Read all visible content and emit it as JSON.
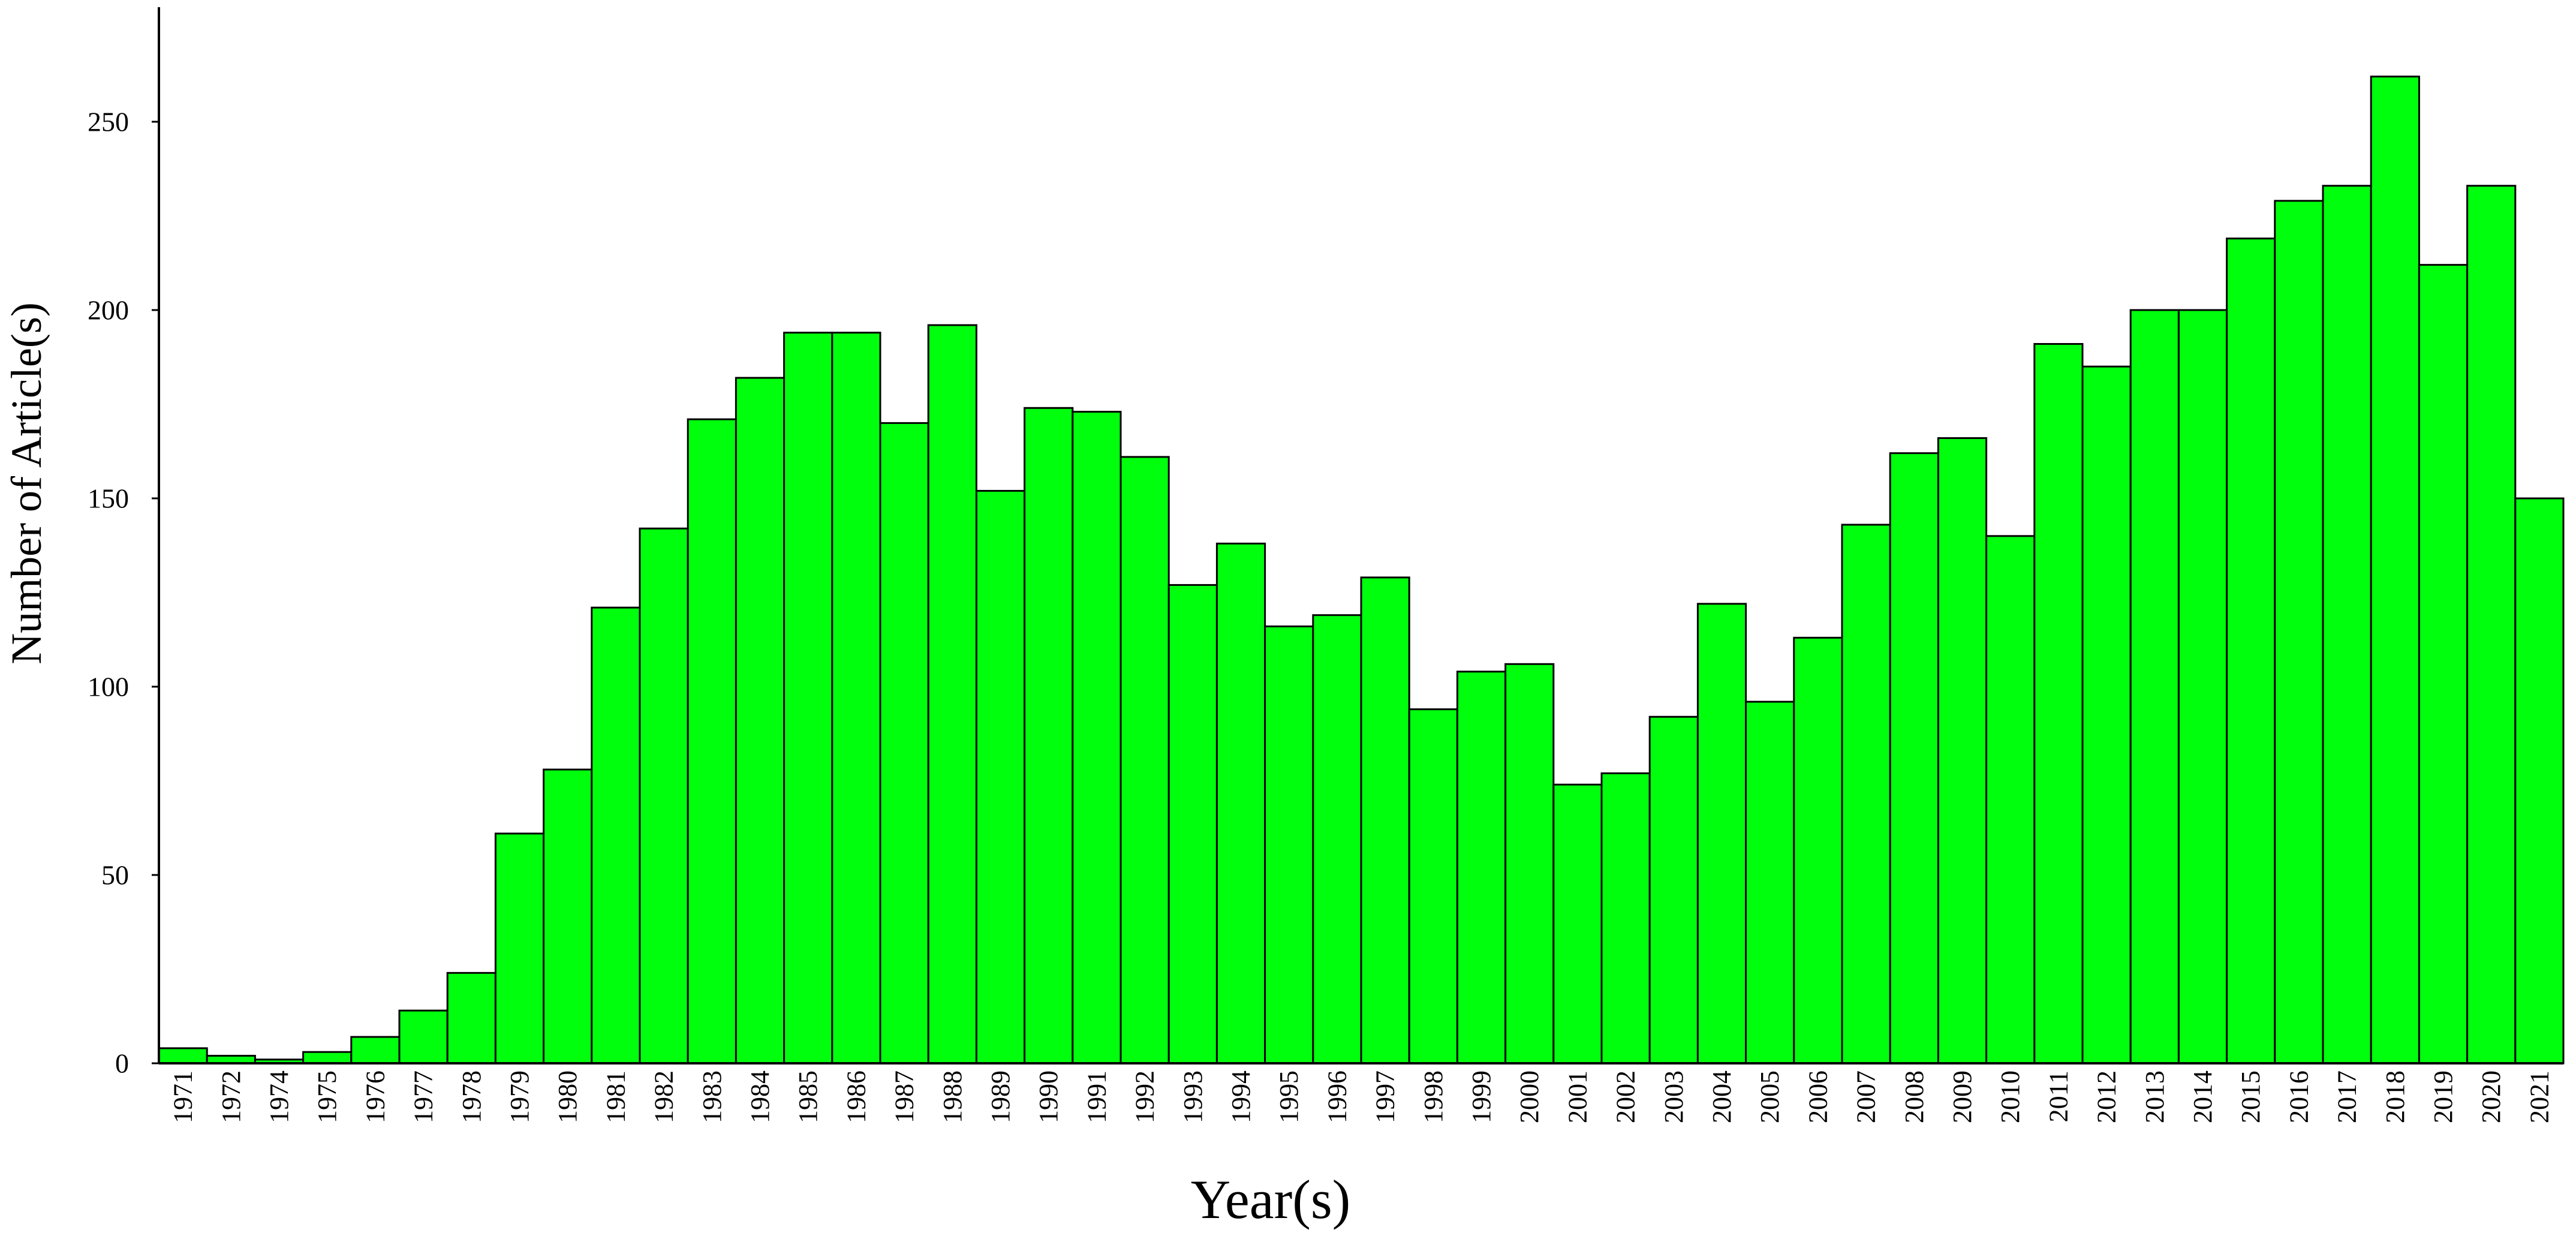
{
  "chart_data": {
    "type": "bar",
    "title": "",
    "xlabel": "Year(s)",
    "ylabel": "Number of Article(s)",
    "ylim": [
      0,
      280
    ],
    "yticks": [
      0,
      50,
      100,
      150,
      200,
      250
    ],
    "grid": false,
    "legend": "none",
    "bar_color": "#00ff0d",
    "bar_edge_color": "#000000",
    "categories": [
      "1971",
      "1972",
      "1974",
      "1975",
      "1976",
      "1977",
      "1978",
      "1979",
      "1980",
      "1981",
      "1982",
      "1983",
      "1984",
      "1985",
      "1986",
      "1987",
      "1988",
      "1989",
      "1990",
      "1991",
      "1992",
      "1993",
      "1994",
      "1995",
      "1996",
      "1997",
      "1998",
      "1999",
      "2000",
      "2001",
      "2002",
      "2003",
      "2004",
      "2005",
      "2006",
      "2007",
      "2008",
      "2009",
      "2010",
      "2011",
      "2012",
      "2013",
      "2014",
      "2015",
      "2016",
      "2017",
      "2018",
      "2019",
      "2020",
      "2021"
    ],
    "values": [
      4,
      2,
      1,
      3,
      7,
      14,
      24,
      61,
      78,
      121,
      142,
      171,
      182,
      194,
      194,
      170,
      196,
      152,
      174,
      173,
      161,
      127,
      138,
      116,
      119,
      129,
      94,
      104,
      106,
      74,
      77,
      92,
      122,
      96,
      113,
      143,
      162,
      166,
      140,
      191,
      185,
      200,
      200,
      219,
      229,
      233,
      262,
      212,
      233,
      150
    ]
  }
}
